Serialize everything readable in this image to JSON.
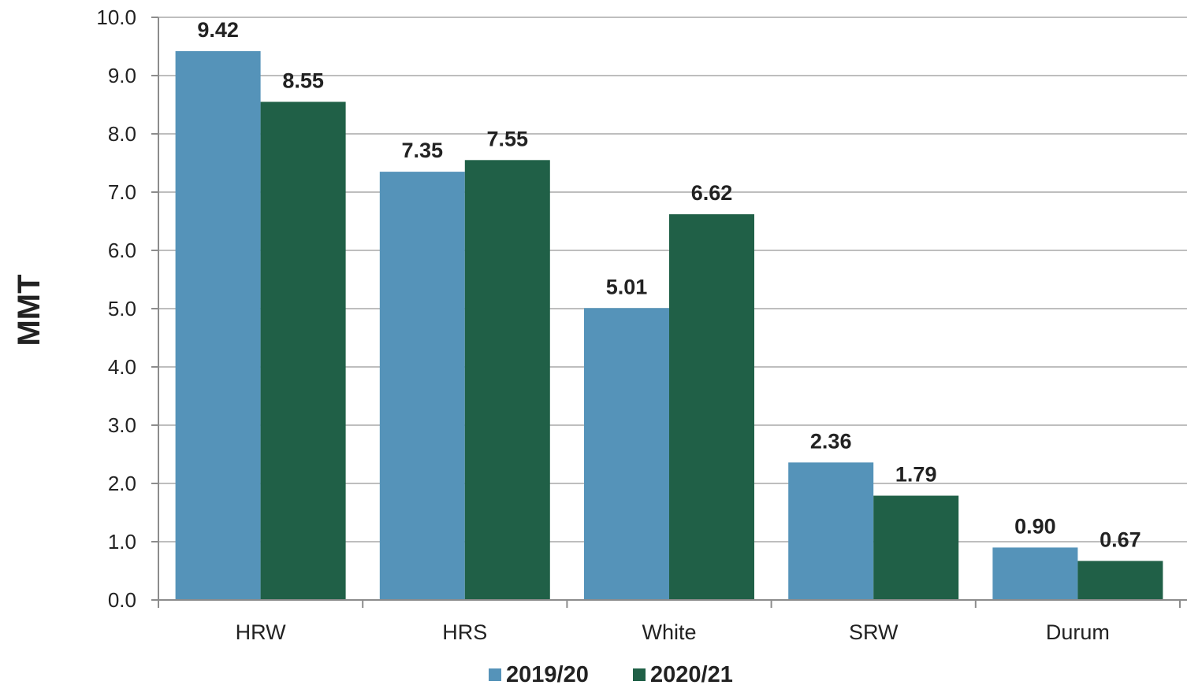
{
  "chart_data": {
    "type": "bar",
    "title": "",
    "xlabel": "",
    "ylabel": "MMT",
    "ylim": [
      0,
      10
    ],
    "ytick_step": 1,
    "ytick_labels": [
      "0.0",
      "1.0",
      "2.0",
      "3.0",
      "4.0",
      "5.0",
      "6.0",
      "7.0",
      "8.0",
      "9.0",
      "10.0"
    ],
    "grid": true,
    "legend_position": "bottom",
    "categories": [
      "HRW",
      "HRS",
      "White",
      "SRW",
      "Durum"
    ],
    "series": [
      {
        "name": "2019/20",
        "color": "#5593b9",
        "values": [
          9.42,
          7.35,
          5.01,
          2.36,
          0.9
        ],
        "labels": [
          "9.42",
          "7.35",
          "5.01",
          "2.36",
          "0.90"
        ]
      },
      {
        "name": "2020/21",
        "color": "#206047",
        "values": [
          8.55,
          7.55,
          6.62,
          1.79,
          0.67
        ],
        "labels": [
          "8.55",
          "7.55",
          "6.62",
          "1.79",
          "0.67"
        ]
      }
    ]
  }
}
